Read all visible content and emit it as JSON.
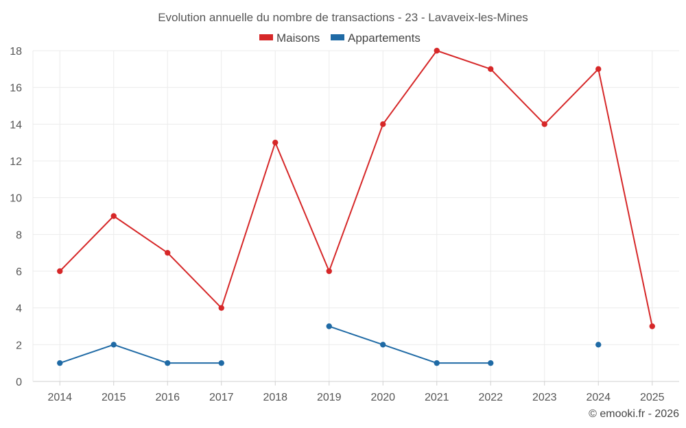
{
  "chart_data": {
    "type": "line",
    "title": "Evolution annuelle du nombre de transactions - 23 - Lavaveix-les-Mines",
    "categories": [
      "2014",
      "2015",
      "2016",
      "2017",
      "2018",
      "2019",
      "2020",
      "2021",
      "2022",
      "2023",
      "2024",
      "2025"
    ],
    "series": [
      {
        "name": "Maisons",
        "color": "#d62728",
        "values": [
          6,
          9,
          7,
          4,
          13,
          6,
          14,
          18,
          17,
          14,
          17,
          3
        ]
      },
      {
        "name": "Appartements",
        "color": "#1f6aa5",
        "values": [
          1,
          2,
          1,
          1,
          null,
          3,
          2,
          1,
          1,
          null,
          2,
          null
        ]
      }
    ],
    "ylim": [
      0,
      18
    ],
    "yticks": [
      0,
      2,
      4,
      6,
      8,
      10,
      12,
      14,
      16,
      18
    ],
    "xlabel": "",
    "ylabel": "",
    "grid": true,
    "legend_position": "top-center"
  },
  "credit": "© emooki.fr - 2026"
}
